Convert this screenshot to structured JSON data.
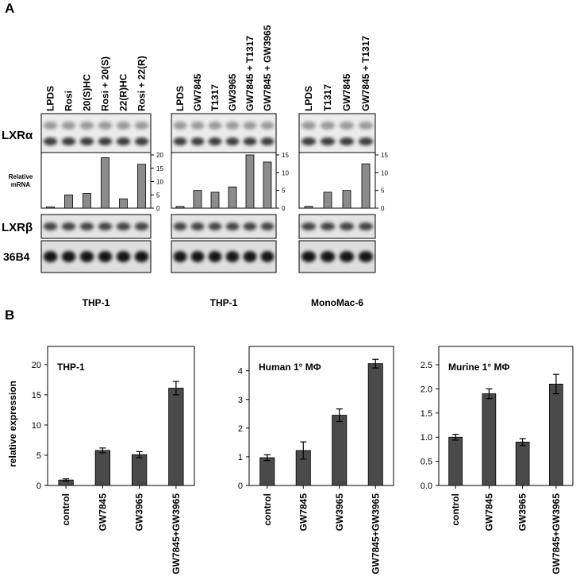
{
  "panel_labels": [
    "A",
    "B"
  ],
  "blot_rows": [
    "LXRα",
    [
      "Relative",
      "mRNA"
    ],
    "LXRβ",
    "36B4"
  ],
  "chart_data": [
    {
      "type": "bar",
      "caption": "THP-1",
      "color": "#8c8c8c",
      "categories": [
        "LPDS",
        "Rosi",
        "20(S)HC",
        "Rosi + 20(S)",
        "22(R)HC",
        "Rosi + 22(R)"
      ],
      "values": [
        0.5,
        5,
        5.5,
        19,
        3.5,
        16.5
      ],
      "ylim": [
        0,
        20
      ],
      "yticks": [
        0,
        5,
        10,
        15,
        20
      ]
    },
    {
      "type": "bar",
      "caption": "THP-1",
      "color": "#8c8c8c",
      "categories": [
        "LPDS",
        "GW7845",
        "T1317",
        "GW3965",
        "GW7845 + T1317",
        "GW7845 + GW3965"
      ],
      "values": [
        0.5,
        5,
        4.5,
        6,
        15,
        13
      ],
      "ylim": [
        0,
        15
      ],
      "yticks": [
        0,
        5,
        10,
        15
      ]
    },
    {
      "type": "bar",
      "caption": "MonoMac-6",
      "color": "#8c8c8c",
      "categories": [
        "LPDS",
        "T1317",
        "GW7845",
        "GW7845 + T1317"
      ],
      "values": [
        0.5,
        4.5,
        5,
        12.5
      ],
      "ylim": [
        0,
        15
      ],
      "yticks": [
        0,
        5,
        10,
        15
      ]
    },
    {
      "type": "bar",
      "title": "THP-1",
      "ylabel": "relative expression",
      "color": "#4a4a4a",
      "categories": [
        "control",
        "GW7845",
        "GW3965",
        "GW7845+GW3965"
      ],
      "values": [
        0.9,
        5.8,
        5.1,
        16.1
      ],
      "errors": [
        0.2,
        0.4,
        0.5,
        1.1
      ],
      "ylim": [
        0,
        23
      ],
      "yticks": [
        0,
        5,
        10,
        15,
        20
      ]
    },
    {
      "type": "bar",
      "title": "Human 1° MΦ",
      "color": "#4a4a4a",
      "categories": [
        "control",
        "GW7845",
        "GW3965",
        "GW7845+GW3965"
      ],
      "values": [
        0.97,
        1.22,
        2.45,
        4.25
      ],
      "errors": [
        0.1,
        0.3,
        0.22,
        0.15
      ],
      "ylim": [
        0,
        4.85
      ],
      "yticks": [
        0,
        1,
        2,
        3,
        4
      ]
    },
    {
      "type": "bar",
      "title": "Murine 1° MΦ",
      "color": "#4a4a4a",
      "categories": [
        "control",
        "GW7845",
        "GW3965",
        "GW7845+GW3965"
      ],
      "values": [
        1.0,
        1.9,
        0.9,
        2.1
      ],
      "errors": [
        0.06,
        0.1,
        0.07,
        0.2
      ],
      "ylim": [
        0,
        2.88
      ],
      "yticks": [
        {
          "value": 0,
          "label": "0.0"
        },
        0.5,
        {
          "value": 1,
          "label": "1.0"
        },
        1.5,
        {
          "value": 2,
          "label": "2.0"
        },
        2.5
      ]
    }
  ]
}
